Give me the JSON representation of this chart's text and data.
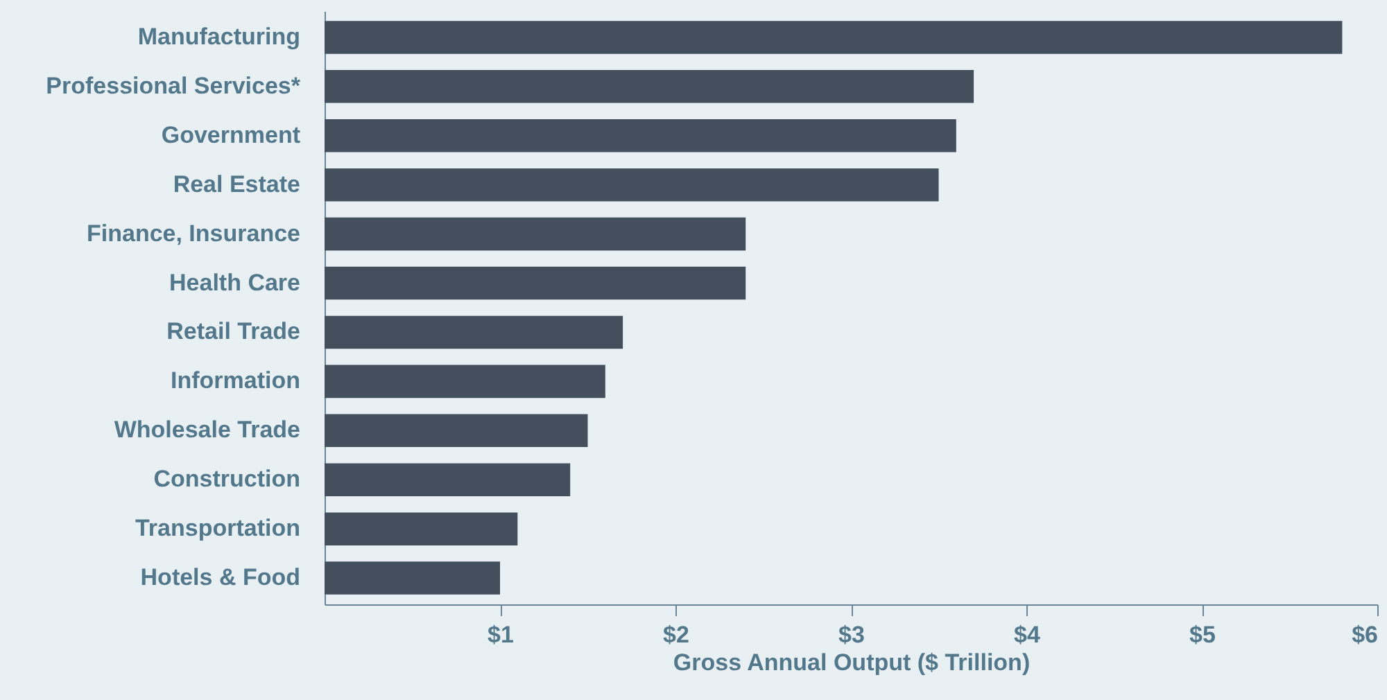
{
  "chart_data": {
    "type": "bar",
    "orientation": "horizontal",
    "xlabel": "Gross Annual Output ($ Trillion)",
    "categories": [
      "Manufacturing",
      "Professional Services*",
      "Government",
      "Real Estate",
      "Finance, Insurance",
      "Health Care",
      "Retail Trade",
      "Information",
      "Wholesale Trade",
      "Construction",
      "Transportation",
      "Hotels & Food"
    ],
    "values": [
      5.8,
      3.7,
      3.6,
      3.5,
      2.4,
      2.4,
      1.7,
      1.6,
      1.5,
      1.4,
      1.1,
      1.0
    ],
    "color": "#434f5c",
    "xlim": [
      0,
      6
    ],
    "xticks": [
      {
        "value": 1,
        "label": "$1"
      },
      {
        "value": 2,
        "label": "$2"
      },
      {
        "value": 3,
        "label": "$3"
      },
      {
        "value": 4,
        "label": "$4"
      },
      {
        "value": 5,
        "label": "$5"
      },
      {
        "value": 6,
        "label": "$6"
      }
    ],
    "grid": false
  }
}
